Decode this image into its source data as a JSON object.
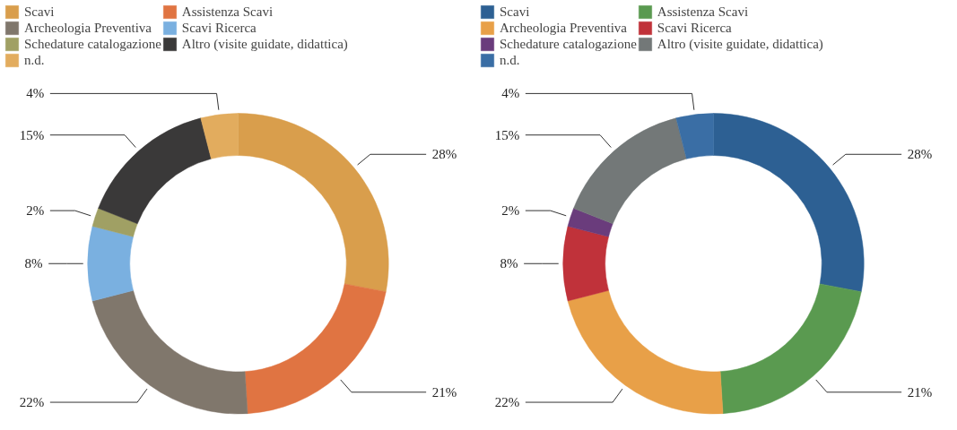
{
  "chart_data": [
    {
      "type": "donut",
      "categories": [
        "Scavi",
        "Assistenza Scavi",
        "Archeologia Preventiva",
        "Scavi Ricerca",
        "Schedature catalogazione",
        "Altro (visite guidate, didattica)",
        "n.d."
      ],
      "values": [
        28,
        21,
        22,
        8,
        2,
        15,
        4
      ],
      "value_labels": [
        "28%",
        "21%",
        "22%",
        "8%",
        "2%",
        "15%",
        "4%"
      ],
      "colors": [
        "#d99e4c",
        "#e07442",
        "#80776c",
        "#7ab0e0",
        "#a0a064",
        "#3a3939",
        "#e2ac5e"
      ],
      "legend": "top"
    },
    {
      "type": "donut",
      "categories": [
        "Scavi",
        "Assistenza Scavi",
        "Archeologia Preventiva",
        "Scavi Ricerca",
        "Schedature catalogazione",
        "Altro (visite guidate, didattica)",
        "n.d."
      ],
      "values": [
        28,
        21,
        22,
        8,
        2,
        15,
        4
      ],
      "value_labels": [
        "28%",
        "21%",
        "22%",
        "8%",
        "2%",
        "15%",
        "4%"
      ],
      "colors": [
        "#2d6093",
        "#5a9a50",
        "#e8a048",
        "#c0323a",
        "#6a3c7c",
        "#737878",
        "#3a6ea5"
      ],
      "legend": "top"
    }
  ]
}
